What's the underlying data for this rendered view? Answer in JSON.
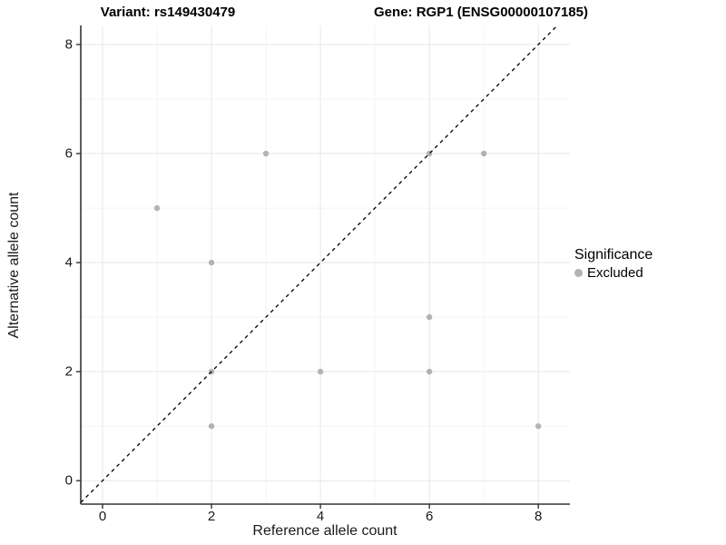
{
  "titles": {
    "variant": "Variant: rs149430479",
    "gene": "Gene: RGP1 (ENSG00000107185)"
  },
  "chart_data": {
    "type": "scatter",
    "xlabel": "Reference allele count",
    "ylabel": "Alternative allele count",
    "xlim": [
      -0.4,
      8.58
    ],
    "ylim": [
      -0.43,
      8.35
    ],
    "x_ticks": [
      0,
      2,
      4,
      6,
      8
    ],
    "y_ticks": [
      0,
      2,
      4,
      6,
      8
    ],
    "x_minor_ticks": [
      1,
      3,
      5,
      7
    ],
    "y_minor_ticks": [
      1,
      3,
      5,
      7
    ],
    "grid": "major+minor",
    "series": [
      {
        "name": "Excluded",
        "color": "#b3b3b3",
        "points": [
          [
            1,
            5
          ],
          [
            2,
            1
          ],
          [
            2,
            2
          ],
          [
            2,
            4
          ],
          [
            3,
            6
          ],
          [
            4,
            2
          ],
          [
            6,
            2
          ],
          [
            6,
            3
          ],
          [
            6,
            6
          ],
          [
            7,
            6
          ],
          [
            8,
            1
          ]
        ]
      }
    ],
    "identity_line": {
      "equation": "y = x",
      "style": "dashed",
      "color": "#000000"
    },
    "legend": {
      "title": "Significance",
      "position": "right",
      "items": [
        {
          "label": "Excluded",
          "color": "#b3b3b3"
        }
      ]
    },
    "colors": {
      "background": "#ffffff",
      "axis": "#333333",
      "grid_major": "#e7e7e7",
      "grid_minor": "#f4f4f4",
      "tick_text": "#1a1a1a"
    }
  }
}
